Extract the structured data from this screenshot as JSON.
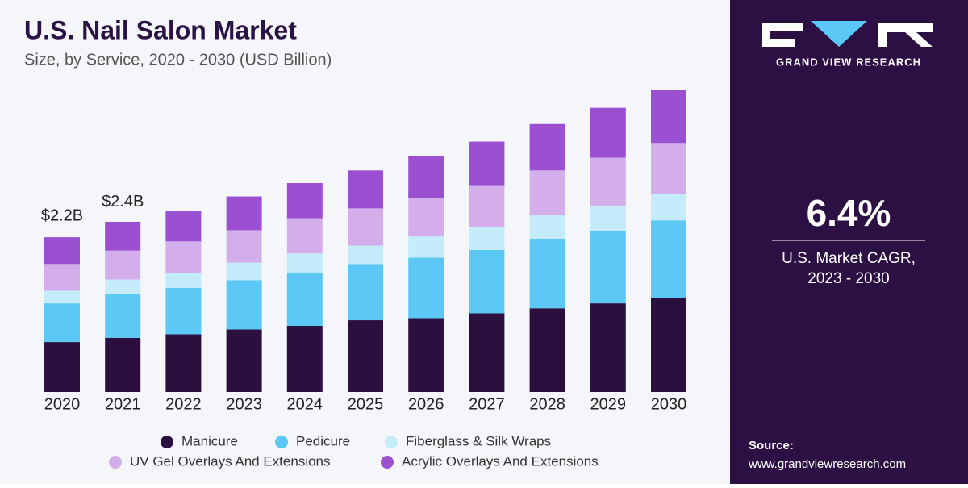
{
  "chart_data": {
    "type": "stacked-bar",
    "title": "U.S. Nail Salon Market",
    "subtitle": "Size, by Service, 2020 - 2030 (USD Billion)",
    "categories": [
      "2020",
      "2021",
      "2022",
      "2023",
      "2024",
      "2025",
      "2026",
      "2027",
      "2028",
      "2029",
      "2030"
    ],
    "series": [
      {
        "name": "Manicure",
        "color": "#2a0f3f",
        "values": [
          0.71,
          0.77,
          0.82,
          0.89,
          0.94,
          1.02,
          1.05,
          1.12,
          1.19,
          1.26,
          1.34
        ]
      },
      {
        "name": "Pedicure",
        "color": "#5bc8f5",
        "values": [
          0.55,
          0.62,
          0.66,
          0.7,
          0.76,
          0.8,
          0.86,
          0.9,
          0.99,
          1.03,
          1.1
        ]
      },
      {
        "name": "Fiberglass & Silk Wraps",
        "color": "#c5ecfb",
        "values": [
          0.18,
          0.21,
          0.21,
          0.25,
          0.27,
          0.26,
          0.3,
          0.32,
          0.33,
          0.36,
          0.38
        ]
      },
      {
        "name": "UV Gel Overlays And Extensions",
        "color": "#d4aeea",
        "values": [
          0.38,
          0.41,
          0.45,
          0.46,
          0.5,
          0.53,
          0.55,
          0.6,
          0.64,
          0.68,
          0.72
        ]
      },
      {
        "name": "Acrylic Overlays And Extensions",
        "color": "#9b4fd1",
        "values": [
          0.38,
          0.41,
          0.44,
          0.48,
          0.5,
          0.54,
          0.6,
          0.62,
          0.66,
          0.71,
          0.76
        ]
      }
    ],
    "ylim": [
      0,
      4.3
    ],
    "annotations": [
      {
        "category": "2020",
        "value": 2.2,
        "label": "$2.2B"
      },
      {
        "category": "2021",
        "value": 2.4,
        "label": "$2.4B"
      }
    ]
  },
  "sidebar": {
    "brand": "GRAND VIEW RESEARCH",
    "cagr": "6.4%",
    "cagr_label": [
      "U.S. Market CAGR,",
      "2023 - 2030"
    ],
    "source_title": "Source:",
    "source_url": "www.grandviewresearch.com"
  }
}
